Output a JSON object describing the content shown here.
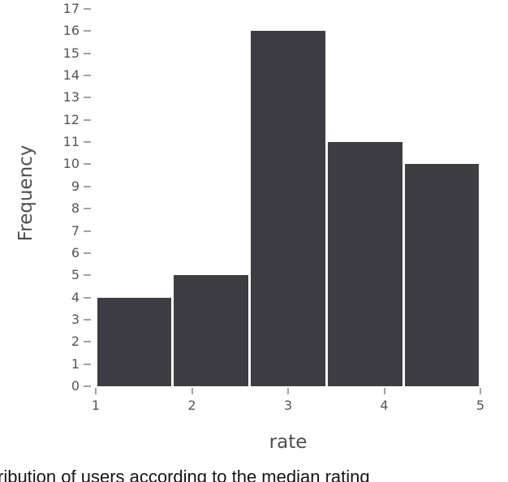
{
  "chart_data": {
    "type": "bar",
    "subtype": "histogram",
    "title": "",
    "xlabel": "rate",
    "ylabel": "Frequency",
    "bin_edges": [
      1,
      1.8,
      2.6,
      3.4,
      4.2,
      5
    ],
    "bin_labels": [
      "1–1.8",
      "1.8–2.6",
      "2.6–3.4",
      "3.4–4.2",
      "4.2–5"
    ],
    "values": [
      4,
      5,
      16,
      11,
      10
    ],
    "xticks": [
      "1",
      "2",
      "3",
      "4",
      "5"
    ],
    "yticks": [
      0,
      1,
      2,
      3,
      4,
      5,
      6,
      7,
      8,
      9,
      10,
      11,
      12,
      13,
      14,
      15,
      16,
      17
    ],
    "ylim": [
      0,
      17.1
    ],
    "grid": "off",
    "legend": "none",
    "bar_color": "#3e3d43",
    "tick_mark_color": "#a3a3a3",
    "tick_label_color": "#55555a",
    "axis_title_color": "#4d4d52"
  },
  "caption": {
    "text": "ribution of users according to the median rating"
  }
}
